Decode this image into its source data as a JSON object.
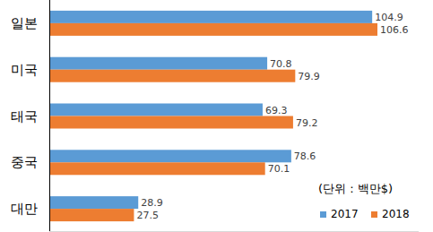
{
  "chart_data": {
    "type": "bar",
    "orientation": "horizontal",
    "categories": [
      "일본",
      "미국",
      "태국",
      "중국",
      "대만"
    ],
    "series": [
      {
        "name": "2017",
        "color": "#5b9bd5",
        "values": [
          104.9,
          70.8,
          69.3,
          78.6,
          28.9
        ]
      },
      {
        "name": "2018",
        "color": "#ed7d31",
        "values": [
          106.6,
          79.9,
          79.2,
          70.1,
          27.5
        ]
      }
    ],
    "xlim": [
      0,
      120
    ],
    "annotations": [
      "(단위 : 백만$)"
    ],
    "data_labels": true,
    "grid": false,
    "tick_labels": "y",
    "legend": "bottom-right"
  }
}
